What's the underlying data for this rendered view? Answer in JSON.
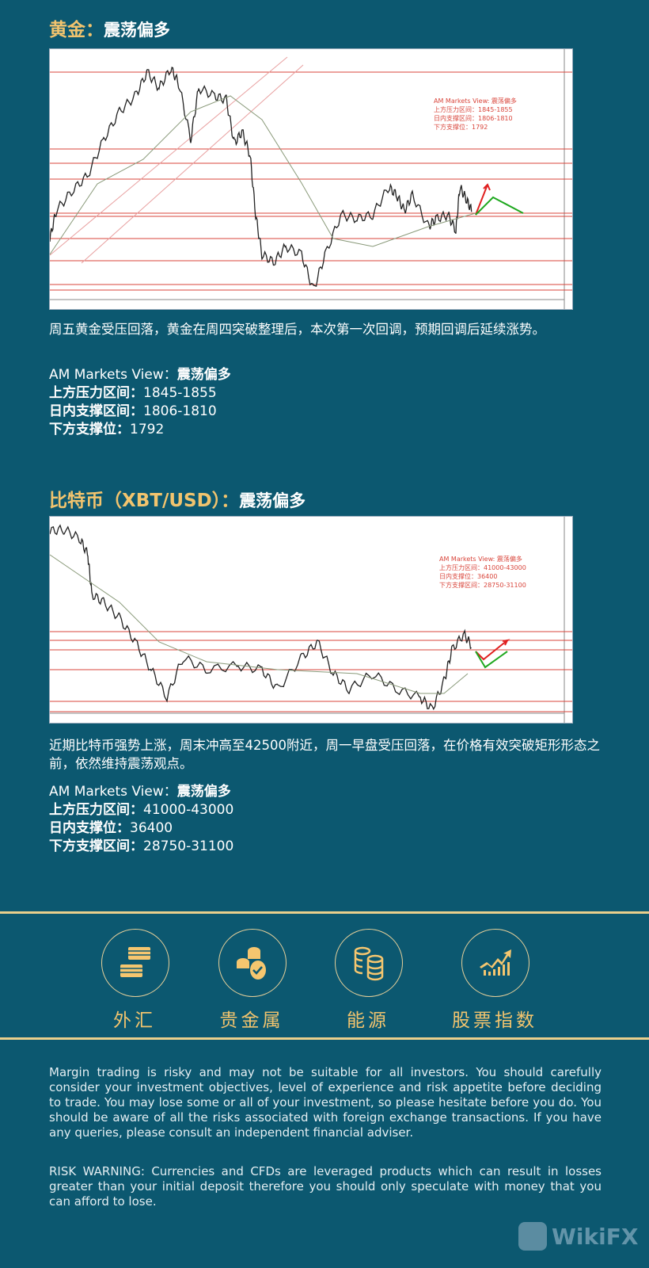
{
  "gold": {
    "title": "黄金：",
    "title_view": "震荡偏多",
    "chart_note": [
      "AM Markets View: 震荡偏多",
      "上方压力区间：1845-1855",
      "日内支撑区间：1806-1810",
      "下方支撑位：1792"
    ],
    "paragraph": "周五黄金受压回落，黄金在周四突破整理后，本次第一次回调，预期回调后延续涨势。",
    "view_label": "AM Markets View：",
    "view_value": "震荡偏多",
    "resistance_label": "上方压力区间：",
    "resistance_value": "1845-1855",
    "intraday_label": "日内支撑区间：",
    "intraday_value": "1806-1810",
    "support_label": "下方支撑位：",
    "support_value": "1792"
  },
  "btc": {
    "title": "比特币（XBT/USD）：",
    "title_view": "震荡偏多",
    "chart_note": [
      "AM Markets View: 震荡偏多",
      "上方压力区间：41000-43000",
      "日内支撑位：36400",
      "下方支撑区间：28750-31100"
    ],
    "paragraph": "近期比特币强势上涨，周末冲高至42500附近，周一早盘受压回落，在价格有效突破矩形形态之前，依然维持震荡观点。",
    "view_label": "AM Markets View：",
    "view_value": "震荡偏多",
    "resistance_label": "上方压力区间：",
    "resistance_value": "41000-43000",
    "intraday_label": "日内支撑位：",
    "intraday_value": "36400",
    "support_label": "下方支撑区间：",
    "support_value": "28750-31100"
  },
  "categories": [
    {
      "label": "外汇",
      "icon": "cash-stack-icon"
    },
    {
      "label": "贵金属",
      "icon": "coins-icon"
    },
    {
      "label": "能源",
      "icon": "coin-stacks-icon"
    },
    {
      "label": "股票指数",
      "icon": "growth-chart-icon"
    }
  ],
  "disclaimer": "Margin trading is risky and may not be suitable for all investors. You should carefully consider your investment objectives, level of experience and risk appetite before deciding to trade. You may lose some or all of your investment, so please hesitate before you do. You should be aware of all the risks associated with foreign exchange transactions. If you have any queries, please consult an independent financial adviser.",
  "risk_warning": "RISK WARNING: Currencies and CFDs are leveraged products which can result in losses greater than your initial deposit therefore you should only speculate with money that you can afford to lose.",
  "watermark": "WikiFX",
  "colors": {
    "background": "#0c5870",
    "gold": "#f2c46e",
    "resistance_line": "#d9453b",
    "up_arrow": "#e02020",
    "down_path": "#1fa81f"
  }
}
